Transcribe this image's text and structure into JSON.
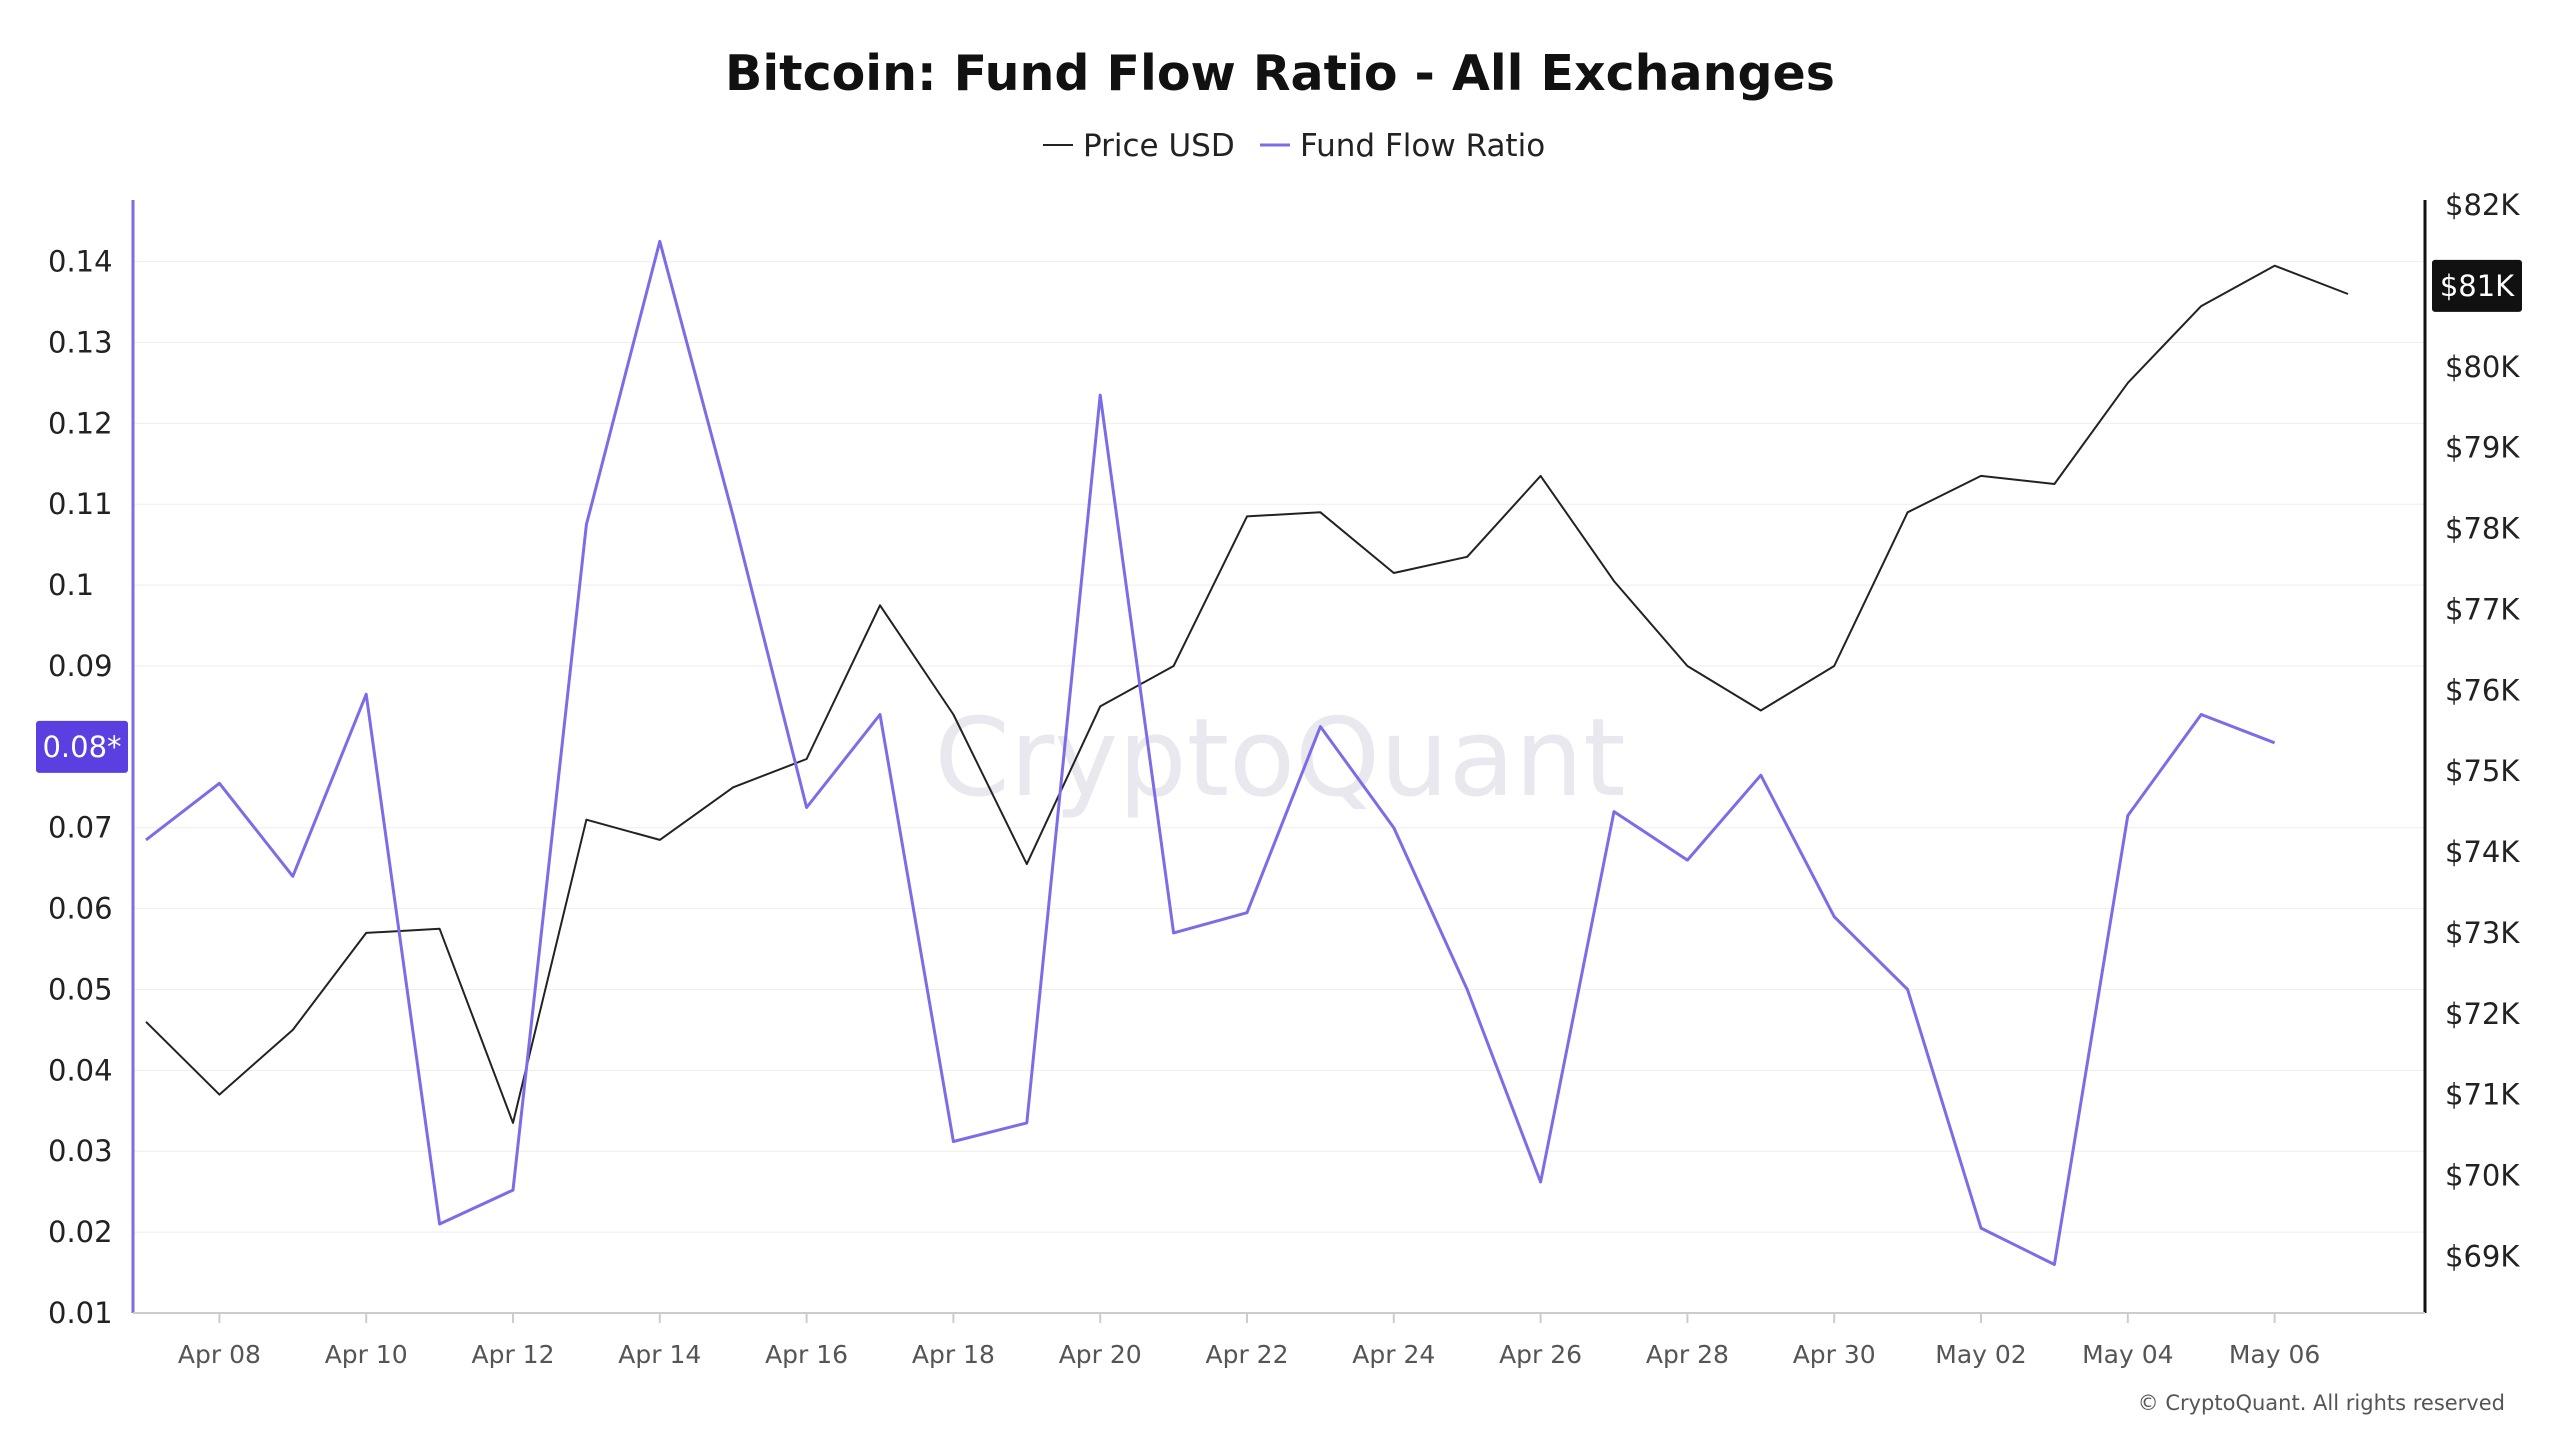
{
  "chart_data": {
    "type": "line",
    "title": "Bitcoin: Fund Flow Ratio - All Exchanges",
    "watermark": "CryptoQuant",
    "copyright": "© CryptoQuant. All rights reserved",
    "legend_position": "top-center",
    "grid": true,
    "x": [
      "Apr 07",
      "Apr 08",
      "Apr 09",
      "Apr 10",
      "Apr 11",
      "Apr 12",
      "Apr 13",
      "Apr 14",
      "Apr 15",
      "Apr 16",
      "Apr 17",
      "Apr 18",
      "Apr 19",
      "Apr 20",
      "Apr 21",
      "Apr 22",
      "Apr 23",
      "Apr 24",
      "Apr 25",
      "Apr 26",
      "Apr 27",
      "Apr 28",
      "Apr 29",
      "Apr 30",
      "May 01",
      "May 02",
      "May 03",
      "May 04",
      "May 05",
      "May 06",
      "May 07"
    ],
    "x_tick_labels": [
      "Apr 08",
      "Apr 10",
      "Apr 12",
      "Apr 14",
      "Apr 16",
      "Apr 18",
      "Apr 20",
      "Apr 22",
      "Apr 24",
      "Apr 26",
      "Apr 28",
      "Apr 30",
      "May 02",
      "May 04",
      "May 06"
    ],
    "left_axis": {
      "ticks": [
        "0.01",
        "0.02",
        "0.03",
        "0.04",
        "0.05",
        "0.06",
        "0.07",
        "0.09",
        "0.1",
        "0.11",
        "0.12",
        "0.13",
        "0.14"
      ],
      "range": [
        0.01,
        0.147
      ],
      "color": "#7b6ce8",
      "current_badge": "0.08*",
      "badge_value": 0.08,
      "badge_color": "#5b3fe0"
    },
    "right_axis": {
      "ticks": [
        "$69K",
        "$70K",
        "$71K",
        "$72K",
        "$73K",
        "$74K",
        "$75K",
        "$76K",
        "$77K",
        "$78K",
        "$79K",
        "$80K",
        "$82K"
      ],
      "tick_values": [
        69000,
        70000,
        71000,
        72000,
        73000,
        74000,
        75000,
        76000,
        77000,
        78000,
        79000,
        80000,
        82000
      ],
      "range": [
        68300,
        82000
      ],
      "color": "#111111",
      "current_badge": "$81K",
      "badge_value": 81000,
      "badge_color": "#111111"
    },
    "series": [
      {
        "name": "Price USD",
        "axis": "right",
        "color": "#222222",
        "values": [
          71900,
          71000,
          71800,
          73000,
          73050,
          70650,
          74400,
          74150,
          74800,
          75150,
          77050,
          75700,
          73850,
          75800,
          76300,
          78150,
          78200,
          77450,
          77650,
          78650,
          77350,
          76300,
          75750,
          76300,
          78200,
          78650,
          78550,
          79800,
          80750,
          81250,
          80900
        ]
      },
      {
        "name": "Fund Flow Ratio",
        "axis": "left",
        "color": "#7b6ce8",
        "values": [
          0.0685,
          0.0755,
          0.064,
          0.0865,
          0.021,
          0.0252,
          0.1075,
          0.1425,
          0.1085,
          0.0725,
          0.084,
          0.0312,
          0.0335,
          0.1235,
          0.057,
          0.0595,
          0.0825,
          0.07,
          0.05,
          0.0262,
          0.072,
          0.066,
          0.0765,
          0.059,
          0.05,
          0.0205,
          0.016,
          0.0715,
          0.084,
          0.0805,
          null
        ]
      }
    ]
  }
}
